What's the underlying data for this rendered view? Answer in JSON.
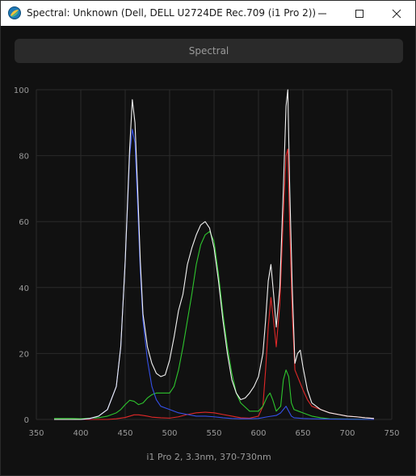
{
  "window": {
    "title": "Spectral: Unknown (Dell, DELL U2724DE Rec.709 (i1 Pro 2))",
    "controls": [
      "minimize-icon",
      "maximize-icon",
      "close-icon"
    ]
  },
  "tab": {
    "label": "Spectral"
  },
  "footer": {
    "text": "i1 Pro 2, 3.3nm, 370-730nm"
  },
  "colors": {
    "background": "#111111",
    "grid": "#2a2a2a",
    "white": "#f2f2f2",
    "red": "#e02828",
    "green": "#2ec52e",
    "blue": "#3550e8"
  },
  "chart_data": {
    "type": "line",
    "title": "",
    "xlabel": "",
    "ylabel": "",
    "xlim": [
      350,
      750
    ],
    "ylim": [
      0,
      100
    ],
    "x_ticks": [
      350,
      400,
      450,
      500,
      550,
      600,
      650,
      700,
      750
    ],
    "y_ticks": [
      0,
      20,
      40,
      60,
      80,
      100
    ],
    "grid": true,
    "series": [
      {
        "color": "white",
        "x": [
          370,
          400,
          410,
          420,
          430,
          440,
          445,
          450,
          455,
          458,
          461,
          464,
          467,
          470,
          475,
          480,
          485,
          490,
          495,
          500,
          505,
          510,
          515,
          520,
          525,
          530,
          535,
          540,
          545,
          550,
          555,
          560,
          565,
          570,
          575,
          580,
          585,
          590,
          595,
          600,
          605,
          608,
          611,
          614,
          617,
          620,
          624,
          628,
          631,
          633,
          635,
          638,
          641,
          644,
          647,
          650,
          655,
          660,
          670,
          680,
          690,
          700,
          710,
          720,
          730
        ],
        "y": [
          0,
          0,
          0.3,
          1,
          3,
          10,
          22,
          48,
          82,
          97,
          90,
          70,
          48,
          32,
          22,
          17,
          14,
          13,
          13.5,
          18,
          25,
          33,
          38,
          47,
          52,
          56,
          59,
          60,
          58,
          52,
          42,
          30,
          20,
          12,
          8,
          6,
          6.5,
          8,
          10,
          13,
          20,
          30,
          42,
          47,
          38,
          28,
          40,
          70,
          95,
          100,
          72,
          40,
          17,
          20,
          21,
          16,
          9,
          5,
          3,
          2,
          1.5,
          1,
          0.8,
          0.5,
          0.3
        ]
      },
      {
        "color": "red",
        "x": [
          370,
          400,
          430,
          440,
          450,
          455,
          460,
          465,
          470,
          475,
          480,
          490,
          500,
          510,
          520,
          530,
          540,
          550,
          560,
          570,
          580,
          590,
          600,
          605,
          608,
          611,
          614,
          617,
          620,
          624,
          628,
          631,
          633,
          635,
          638,
          641,
          644,
          647,
          650,
          655,
          660,
          670,
          680,
          690,
          700,
          710,
          720,
          730
        ],
        "y": [
          0,
          0,
          0,
          0.2,
          0.6,
          1,
          1.4,
          1.4,
          1.2,
          1,
          0.7,
          0.5,
          0.4,
          0.8,
          1.5,
          2,
          2.2,
          2,
          1.5,
          1,
          0.5,
          0.4,
          1,
          4,
          15,
          28,
          37,
          30,
          22,
          35,
          62,
          80,
          82,
          60,
          32,
          15,
          13,
          11,
          9,
          6,
          4,
          3,
          2,
          1.5,
          1,
          0.8,
          0.5,
          0.3
        ]
      },
      {
        "color": "green",
        "x": [
          370,
          390,
          400,
          420,
          430,
          440,
          445,
          450,
          455,
          460,
          465,
          470,
          475,
          480,
          485,
          490,
          500,
          505,
          510,
          515,
          520,
          525,
          530,
          535,
          540,
          545,
          550,
          555,
          560,
          565,
          570,
          575,
          580,
          590,
          600,
          605,
          610,
          613,
          616,
          620,
          625,
          628,
          631,
          634,
          637,
          640,
          645,
          650,
          660,
          670,
          680,
          730
        ],
        "y": [
          0.3,
          0.3,
          0.2,
          0.5,
          1,
          2,
          3,
          4.5,
          5.8,
          5.5,
          4.5,
          5,
          6.5,
          7.5,
          8,
          8,
          8,
          10,
          15,
          22,
          30,
          38,
          47,
          53,
          56,
          57,
          54,
          44,
          32,
          22,
          14,
          8,
          5,
          2.5,
          2.5,
          4,
          7,
          8,
          6,
          2.5,
          4,
          12,
          15,
          13,
          5,
          3,
          2.5,
          2,
          1,
          0.5,
          0.2,
          0
        ]
      },
      {
        "color": "blue",
        "x": [
          370,
          400,
          410,
          420,
          430,
          440,
          445,
          450,
          455,
          458,
          461,
          464,
          467,
          470,
          475,
          480,
          485,
          490,
          500,
          510,
          520,
          530,
          540,
          550,
          560,
          570,
          580,
          590,
          600,
          610,
          620,
          625,
          628,
          631,
          634,
          637,
          640,
          650,
          660,
          680,
          730
        ],
        "y": [
          0,
          0,
          0.2,
          1,
          3,
          10,
          22,
          48,
          80,
          88,
          84,
          65,
          45,
          30,
          18,
          10,
          6,
          4,
          3,
          2,
          1.5,
          1,
          1,
          0.8,
          0.5,
          0.3,
          0.2,
          0.2,
          0.3,
          0.8,
          1.2,
          2,
          3,
          4,
          2.5,
          1,
          0.5,
          0.3,
          0.2,
          0.1,
          0
        ]
      }
    ]
  }
}
